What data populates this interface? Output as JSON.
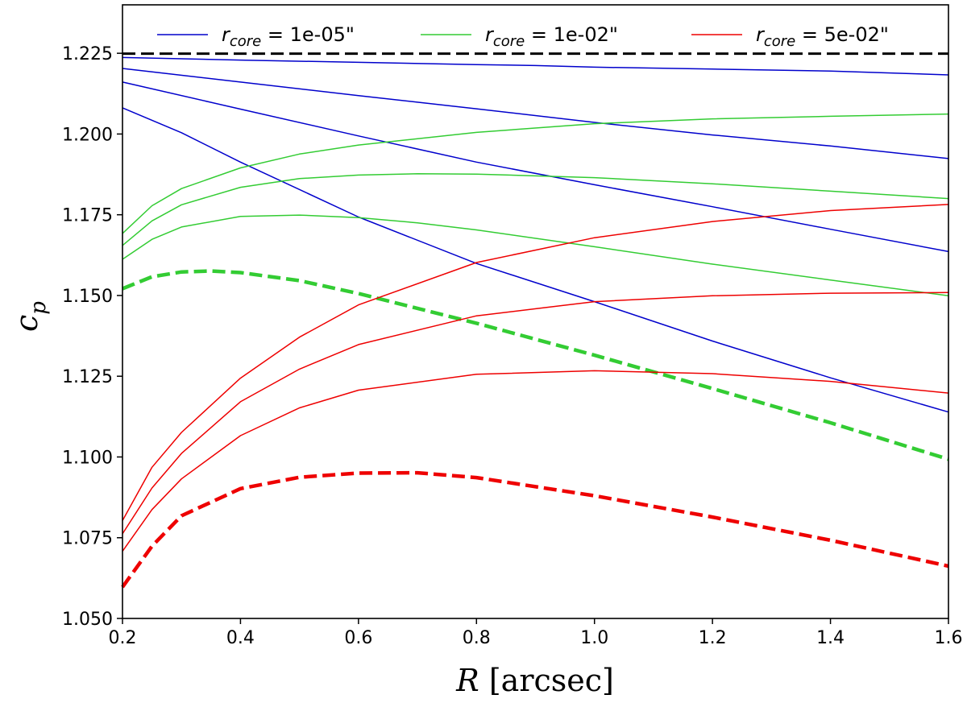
{
  "chart_data": {
    "type": "line",
    "title": "",
    "xlabel": {
      "var": "R",
      "unit": "[arcsec]"
    },
    "ylabel": {
      "base": "c",
      "sub": "p"
    },
    "xlim": [
      0.2,
      1.6
    ],
    "ylim": [
      1.05,
      1.24
    ],
    "xticks": [
      0.2,
      0.4,
      0.6,
      0.8,
      1.0,
      1.2,
      1.4,
      1.6
    ],
    "xtick_labels": [
      "0.2",
      "0.4",
      "0.6",
      "0.8",
      "1.0",
      "1.2",
      "1.4",
      "1.6"
    ],
    "yticks": [
      1.05,
      1.075,
      1.1,
      1.125,
      1.15,
      1.175,
      1.2,
      1.225
    ],
    "ytick_labels": [
      "1.050",
      "1.075",
      "1.100",
      "1.125",
      "1.150",
      "1.175",
      "1.200",
      "1.225"
    ],
    "legend": {
      "location": "top",
      "entries": [
        {
          "prefix": "r",
          "sub": "core",
          "suffix": " = 1e-05\"",
          "color": "#0000cc"
        },
        {
          "prefix": "r",
          "sub": "core",
          "suffix": " = 1e-02\"",
          "color": "#33cc33"
        },
        {
          "prefix": "r",
          "sub": "core",
          "suffix": " = 5e-02\"",
          "color": "#ee0000"
        }
      ]
    },
    "series": [
      {
        "name": "rcore 1e-05 (a)",
        "color": "#0000cc",
        "style": "solid",
        "x": [
          0.2,
          0.4,
          0.6,
          0.8,
          0.9,
          1.0,
          1.2,
          1.4,
          1.6
        ],
        "y": [
          1.2237,
          1.2229,
          1.2222,
          1.2215,
          1.2212,
          1.2207,
          1.2201,
          1.2195,
          1.2183
        ]
      },
      {
        "name": "rcore 1e-05 (b)",
        "color": "#0000cc",
        "style": "solid",
        "x": [
          0.2,
          0.4,
          0.6,
          0.8,
          1.0,
          1.2,
          1.4,
          1.6
        ],
        "y": [
          1.2203,
          1.2161,
          1.2119,
          1.2078,
          1.2036,
          1.1997,
          1.1963,
          1.1924
        ]
      },
      {
        "name": "rcore 1e-05 (c)",
        "color": "#0000cc",
        "style": "solid",
        "x": [
          0.2,
          0.4,
          0.6,
          0.8,
          1.0,
          1.2,
          1.4,
          1.6
        ],
        "y": [
          1.2161,
          1.2077,
          1.1994,
          1.1913,
          1.1843,
          1.1775,
          1.1705,
          1.1636
        ]
      },
      {
        "name": "rcore 1e-05 (d)",
        "color": "#0000cc",
        "style": "solid",
        "x": [
          0.2,
          0.3,
          0.4,
          0.6,
          0.8,
          1.0,
          1.2,
          1.4,
          1.6
        ],
        "y": [
          1.2081,
          1.2004,
          1.1913,
          1.1743,
          1.1599,
          1.1481,
          1.1359,
          1.1245,
          1.1139
        ]
      },
      {
        "name": "rcore 1e-02 (a)",
        "color": "#33cc33",
        "style": "solid",
        "x": [
          0.2,
          0.25,
          0.3,
          0.4,
          0.5,
          0.6,
          0.8,
          1.0,
          1.2,
          1.4,
          1.6
        ],
        "y": [
          1.1692,
          1.1778,
          1.1831,
          1.1895,
          1.1938,
          1.1966,
          1.2005,
          1.2032,
          1.2047,
          1.2055,
          1.2062
        ]
      },
      {
        "name": "rcore 1e-02 (b)",
        "color": "#33cc33",
        "style": "solid",
        "x": [
          0.2,
          0.25,
          0.3,
          0.4,
          0.5,
          0.6,
          0.7,
          0.8,
          1.0,
          1.2,
          1.4,
          1.6
        ],
        "y": [
          1.1655,
          1.1731,
          1.1781,
          1.1835,
          1.1862,
          1.1873,
          1.1877,
          1.1876,
          1.1865,
          1.1846,
          1.1823,
          1.18
        ]
      },
      {
        "name": "rcore 1e-02 (c)",
        "color": "#33cc33",
        "style": "solid",
        "x": [
          0.2,
          0.25,
          0.3,
          0.4,
          0.5,
          0.6,
          0.7,
          0.8,
          1.0,
          1.2,
          1.4,
          1.6
        ],
        "y": [
          1.1612,
          1.1674,
          1.1712,
          1.1745,
          1.1749,
          1.1741,
          1.1725,
          1.1703,
          1.1651,
          1.1597,
          1.1548,
          1.1499
        ]
      },
      {
        "name": "rcore 1e-02 (dashed)",
        "color": "#33cc33",
        "style": "dashed",
        "x": [
          0.2,
          0.25,
          0.3,
          0.35,
          0.4,
          0.5,
          0.6,
          0.8,
          1.0,
          1.2,
          1.4,
          1.6
        ],
        "y": [
          1.1521,
          1.1558,
          1.1573,
          1.1576,
          1.1571,
          1.1546,
          1.1506,
          1.1414,
          1.1315,
          1.1212,
          1.1106,
          1.0993
        ]
      },
      {
        "name": "rcore 5e-02 (a)",
        "color": "#ee0000",
        "style": "solid",
        "x": [
          0.2,
          0.25,
          0.3,
          0.4,
          0.5,
          0.6,
          0.8,
          1.0,
          1.2,
          1.4,
          1.6
        ],
        "y": [
          1.0803,
          1.0968,
          1.1076,
          1.1244,
          1.1371,
          1.1471,
          1.1602,
          1.1679,
          1.1729,
          1.1763,
          1.1782
        ]
      },
      {
        "name": "rcore 5e-02 (b)",
        "color": "#ee0000",
        "style": "solid",
        "x": [
          0.2,
          0.25,
          0.3,
          0.4,
          0.5,
          0.6,
          0.8,
          1.0,
          1.2,
          1.4,
          1.6
        ],
        "y": [
          1.0762,
          1.0904,
          1.1011,
          1.1171,
          1.1272,
          1.1348,
          1.1437,
          1.1481,
          1.1499,
          1.1507,
          1.1509
        ]
      },
      {
        "name": "rcore 5e-02 (c)",
        "color": "#ee0000",
        "style": "solid",
        "x": [
          0.2,
          0.25,
          0.3,
          0.4,
          0.5,
          0.6,
          0.8,
          1.0,
          1.2,
          1.4,
          1.6
        ],
        "y": [
          1.0708,
          1.0837,
          1.0932,
          1.1066,
          1.1152,
          1.1207,
          1.1256,
          1.1267,
          1.1258,
          1.1234,
          1.1198
        ]
      },
      {
        "name": "rcore 5e-02 (dashed)",
        "color": "#ee0000",
        "style": "dashed",
        "x": [
          0.2,
          0.25,
          0.3,
          0.4,
          0.5,
          0.6,
          0.7,
          0.8,
          1.0,
          1.2,
          1.4,
          1.6
        ],
        "y": [
          1.0597,
          1.0724,
          1.0818,
          1.0902,
          1.0937,
          1.095,
          1.0951,
          1.0936,
          1.088,
          1.0814,
          1.0742,
          1.0662
        ]
      },
      {
        "name": "upper bound",
        "color": "#000000",
        "style": "dashed",
        "x": [
          0.2,
          1.6
        ],
        "y": [
          1.2249,
          1.2249
        ]
      }
    ]
  }
}
